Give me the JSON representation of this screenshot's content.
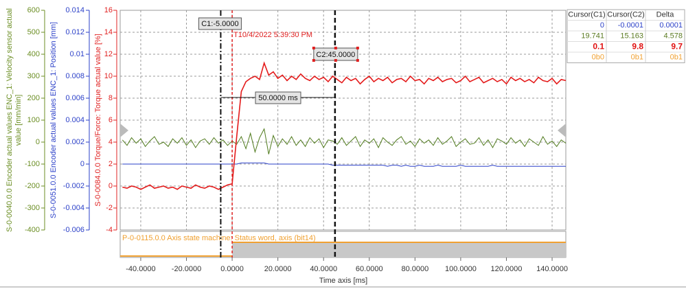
{
  "chart_data": {
    "type": "line",
    "xlabel": "Time axis [ms]",
    "xlim": [
      -49,
      146
    ],
    "xticks": [
      {
        "value": -40,
        "label": "-40.0000"
      },
      {
        "value": -20,
        "label": "-20.0000"
      },
      {
        "value": 0,
        "label": "0.0000"
      },
      {
        "value": 20,
        "label": "20.0000"
      },
      {
        "value": 40,
        "label": "40.0000"
      },
      {
        "value": 60,
        "label": "60.0000"
      },
      {
        "value": 80,
        "label": "80.0000"
      },
      {
        "value": 100,
        "label": "100.0000"
      },
      {
        "value": 120,
        "label": "120.0000"
      },
      {
        "value": 140,
        "label": "140.0000"
      }
    ],
    "grid": true,
    "y_axes": [
      {
        "label": [
          "S-0-0040.0.0 Encoder actual values ENC_1: Velocity sensor actual",
          "value [mm/min]"
        ],
        "color": "#6b8e23",
        "ylim": [
          -400,
          600
        ],
        "yticks": [
          600,
          500,
          400,
          300,
          200,
          100,
          0,
          -100,
          -200,
          -300,
          -400
        ]
      },
      {
        "label": [
          "S-0-0051.0.0 Encoder actual values ENC_1: Position [mm]"
        ],
        "color": "#2a3fc8",
        "ylim": [
          -0.006,
          0.014
        ],
        "yticks": [
          0.014,
          0.012,
          0.01,
          0.008,
          0.006,
          0.004,
          0.002,
          0,
          -0.002,
          -0.004,
          -0.006
        ]
      },
      {
        "label": [
          "S-0-0084.0.0 Torque/Force: Torque actual value [%]"
        ],
        "color": "#e02020",
        "ylim": [
          -4,
          16
        ],
        "yticks": [
          16,
          14,
          12,
          10,
          8,
          6,
          4,
          2,
          0,
          -2,
          -4
        ]
      }
    ],
    "x": [
      -48,
      -46,
      -44,
      -42,
      -40,
      -38,
      -36,
      -34,
      -32,
      -30,
      -28,
      -26,
      -24,
      -22,
      -20,
      -18,
      -16,
      -14,
      -12,
      -10,
      -8,
      -6,
      -4,
      -2,
      0,
      2,
      4,
      6,
      8,
      10,
      12,
      14,
      16,
      18,
      20,
      22,
      24,
      26,
      28,
      30,
      32,
      34,
      36,
      38,
      40,
      42,
      44,
      46,
      48,
      50,
      52,
      54,
      56,
      58,
      60,
      62,
      64,
      66,
      68,
      70,
      72,
      74,
      76,
      78,
      80,
      82,
      84,
      86,
      88,
      90,
      92,
      94,
      96,
      98,
      100,
      102,
      104,
      106,
      108,
      110,
      112,
      114,
      116,
      118,
      120,
      122,
      124,
      126,
      128,
      130,
      132,
      134,
      136,
      138,
      140,
      142,
      144,
      146
    ],
    "series": [
      {
        "axis": 0,
        "color": "#4f7a1c",
        "values": [
          10,
          -15,
          20,
          -5,
          15,
          -20,
          5,
          25,
          -10,
          0,
          -20,
          15,
          -5,
          20,
          -15,
          10,
          -25,
          5,
          15,
          -10,
          20,
          -5,
          10,
          -15,
          5,
          -10,
          25,
          -30,
          40,
          -45,
          20,
          60,
          -55,
          30,
          -20,
          15,
          -10,
          25,
          -15,
          10,
          -20,
          20,
          -5,
          15,
          -25,
          10,
          5,
          -10,
          20,
          -15,
          5,
          25,
          -20,
          10,
          -5,
          15,
          -25,
          20,
          0,
          -15,
          10,
          25,
          -10,
          5,
          -20,
          15,
          -5,
          10,
          -15,
          20,
          -10,
          5,
          25,
          -20,
          0,
          15,
          -10,
          -5,
          20,
          -15,
          10,
          -25,
          15,
          5,
          -10,
          20,
          -5,
          10,
          -20,
          15,
          0,
          -15,
          25,
          -10,
          5,
          -20,
          10,
          -5
        ]
      },
      {
        "axis": 1,
        "color": "#2a3fc8",
        "values": [
          0,
          0,
          0,
          0,
          0,
          0,
          0,
          0,
          0,
          0,
          0,
          0,
          0,
          0,
          0,
          0,
          0,
          0,
          0,
          0,
          0,
          0,
          0,
          0,
          0,
          0,
          0.0001,
          0.0001,
          0.0001,
          0.0001,
          0.0001,
          0.0001,
          0,
          0,
          0,
          0,
          0,
          0,
          0,
          0,
          0,
          0,
          0,
          0,
          0,
          0,
          -0.0001,
          -0.0001,
          -0.0001,
          -0.0001,
          -0.0001,
          -0.0001,
          -0.0001,
          -0.0001,
          -0.0001,
          -0.0001,
          -0.0001,
          -0.0001,
          -0.0002,
          -0.0001,
          -0.0001,
          -0.0002,
          -0.0001,
          -0.0002,
          -0.0002,
          -0.0001,
          -0.0002,
          -0.0002,
          -0.0002,
          -0.0001,
          -0.0002,
          -0.0002,
          -0.0002,
          -0.0002,
          -0.0001,
          -0.0002,
          -0.0002,
          -0.0002,
          -0.0002,
          -0.0002,
          -0.0002,
          -0.0001,
          -0.0002,
          -0.0002,
          -0.0002,
          -0.0002,
          -0.0002,
          -0.0002,
          -0.0002,
          -0.0002,
          -0.0002,
          -0.0002,
          -0.0002,
          -0.0002,
          -0.0002,
          -0.0002,
          -0.0002,
          -0.0002
        ]
      },
      {
        "axis": 2,
        "color": "#e41a1a",
        "values": [
          -0.1,
          -0.2,
          0.0,
          -0.1,
          -0.3,
          -0.1,
          0.1,
          -0.2,
          -0.1,
          0.0,
          -0.2,
          -0.1,
          -0.3,
          0.0,
          -0.1,
          -0.2,
          0.1,
          -0.1,
          -0.2,
          0.0,
          -0.1,
          -0.3,
          -0.1,
          0.1,
          0.2,
          4.5,
          8.6,
          9.5,
          9.8,
          10.0,
          9.7,
          11.2,
          10.1,
          10.4,
          9.8,
          10.1,
          9.6,
          10.0,
          9.7,
          10.2,
          9.8,
          9.6,
          10.0,
          9.7,
          9.9,
          9.5,
          10.0,
          9.7,
          9.4,
          9.9,
          9.6,
          9.8,
          9.3,
          9.7,
          10.0,
          9.5,
          9.8,
          9.6,
          9.9,
          9.4,
          9.7,
          9.8,
          9.5,
          10.0,
          9.6,
          9.7,
          9.3,
          9.8,
          9.6,
          9.9,
          9.5,
          9.7,
          9.8,
          9.4,
          9.6,
          10.0,
          9.5,
          9.7,
          9.9,
          9.4,
          9.6,
          9.8,
          9.5,
          9.7,
          9.3,
          9.9,
          9.6,
          9.8,
          9.5,
          9.7,
          9.4,
          9.9,
          9.6,
          9.5,
          9.8,
          9.3,
          9.7,
          9.6
        ]
      }
    ],
    "digital": {
      "label": "P-0-0115.0.0 Axis state machine: Status word, axis (bit14)",
      "color": "#f0a030",
      "x": [
        -49,
        0
      ],
      "values": [
        0,
        1
      ]
    },
    "trigger": {
      "x": 0,
      "label": "T10/4/2022 5:39:30 PM"
    },
    "cursors": [
      {
        "x": -5,
        "label": "C1:-5.0000"
      },
      {
        "x": 45,
        "label": "C2:45.0000"
      }
    ],
    "cursor_delta": {
      "value": 50,
      "label": "50.0000 ms"
    }
  },
  "cursor_table": {
    "header": [
      "Cursor(C1)",
      "Cursor(C2)",
      "Delta"
    ],
    "rows": [
      [
        "0",
        "-0.0001",
        "0.0001"
      ],
      [
        "19.741",
        "15.163",
        "4.578"
      ],
      [
        "0.1",
        "9.8",
        "9.7"
      ],
      [
        "0b0",
        "0b1",
        "0b1"
      ]
    ]
  }
}
